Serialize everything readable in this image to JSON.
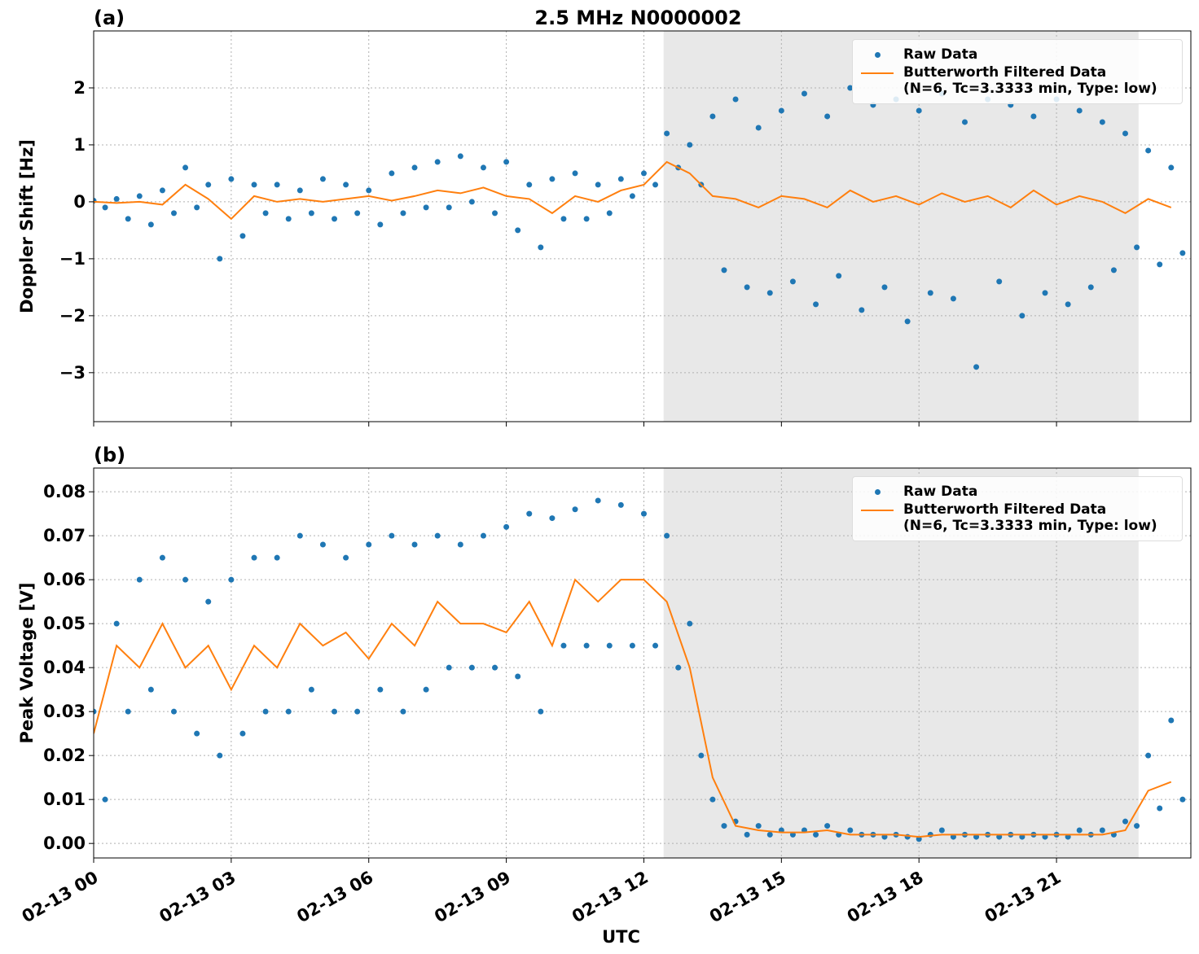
{
  "chart_data": [
    {
      "type": "line",
      "panel_label": "(a)",
      "title": "2.5 MHz N0000002",
      "ylabel": "Doppler Shift [Hz]",
      "xlim": [
        0,
        23.93
      ],
      "ylim": [
        -3.86,
        3.0
      ],
      "xticks": [
        0,
        3,
        6,
        9,
        12,
        15,
        18,
        21
      ],
      "yticks": [
        {
          "value": -3,
          "label": "−3"
        },
        {
          "value": -2,
          "label": "−2"
        },
        {
          "value": -1,
          "label": "−1"
        },
        0,
        1,
        2
      ],
      "grid": true,
      "legend": "upper right",
      "shaded_span": [
        12.43,
        22.79
      ],
      "shade_color": "#e8e8e8",
      "series": [
        {
          "name": "Raw Data",
          "kind": "scatter",
          "color": "#1f77b4",
          "x": [
            0,
            0.25,
            0.5,
            0.75,
            1,
            1.25,
            1.5,
            1.75,
            2,
            2.25,
            2.5,
            2.75,
            3,
            3.25,
            3.5,
            3.75,
            4,
            4.25,
            4.5,
            4.75,
            5,
            5.25,
            5.5,
            5.75,
            6,
            6.25,
            6.5,
            6.75,
            7,
            7.25,
            7.5,
            7.75,
            8,
            8.25,
            8.5,
            8.75,
            9,
            9.25,
            9.5,
            9.75,
            10,
            10.25,
            10.5,
            10.75,
            11,
            11.25,
            11.5,
            11.75,
            12,
            12.25,
            12.5,
            12.75,
            13,
            13.25,
            13.5,
            13.75,
            14,
            14.25,
            14.5,
            14.75,
            15,
            15.25,
            15.5,
            15.75,
            16,
            16.25,
            16.5,
            16.75,
            17,
            17.25,
            17.5,
            17.75,
            18,
            18.25,
            18.5,
            18.75,
            19,
            19.25,
            19.5,
            19.75,
            20,
            20.25,
            20.5,
            20.75,
            21,
            21.25,
            21.5,
            21.75,
            22,
            22.25,
            22.5,
            22.75,
            23,
            23.25,
            23.5,
            23.75
          ],
          "values": [
            0.02,
            -0.1,
            0.05,
            -0.3,
            0.1,
            -0.4,
            0.2,
            -0.2,
            0.6,
            -0.1,
            0.3,
            -1.0,
            0.4,
            -0.6,
            0.3,
            -0.2,
            0.3,
            -0.3,
            0.2,
            -0.2,
            0.4,
            -0.3,
            0.3,
            -0.2,
            0.2,
            -0.4,
            0.5,
            -0.2,
            0.6,
            -0.1,
            0.7,
            -0.1,
            0.8,
            0.0,
            0.6,
            -0.2,
            0.7,
            -0.5,
            0.3,
            -0.8,
            0.4,
            -0.3,
            0.5,
            -0.3,
            0.3,
            -0.2,
            0.4,
            0.1,
            0.5,
            0.3,
            1.2,
            0.6,
            1.0,
            0.3,
            1.5,
            -1.2,
            1.8,
            -1.5,
            1.3,
            -1.6,
            1.6,
            -1.4,
            1.9,
            -1.8,
            1.5,
            -1.3,
            2.0,
            -1.9,
            1.7,
            -1.5,
            1.8,
            -2.1,
            1.6,
            -1.6,
            1.9,
            -1.7,
            1.4,
            -2.9,
            1.8,
            -1.4,
            1.7,
            -2.0,
            1.5,
            -1.6,
            1.8,
            -1.8,
            1.6,
            -1.5,
            1.4,
            -1.2,
            1.2,
            -0.8,
            0.9,
            -1.1,
            0.6,
            -0.9
          ]
        },
        {
          "name": "Butterworth Filtered Data\n(N=6, Tc=3.3333 min, Type: low)",
          "kind": "line",
          "color": "#ff7f0e",
          "x": [
            0,
            0.5,
            1,
            1.5,
            2,
            2.5,
            3,
            3.5,
            4,
            4.5,
            5,
            5.5,
            6,
            6.5,
            7,
            7.5,
            8,
            8.5,
            9,
            9.5,
            10,
            10.5,
            11,
            11.5,
            12,
            12.5,
            13,
            13.5,
            14,
            14.5,
            15,
            15.5,
            16,
            16.5,
            17,
            17.5,
            18,
            18.5,
            19,
            19.5,
            20,
            20.5,
            21,
            21.5,
            22,
            22.5,
            23,
            23.5
          ],
          "values": [
            0,
            -0.02,
            0,
            -0.05,
            0.3,
            0.05,
            -0.3,
            0.1,
            0,
            0.05,
            0,
            0.05,
            0.1,
            0.02,
            0.1,
            0.2,
            0.15,
            0.25,
            0.1,
            0.05,
            -0.2,
            0.1,
            0,
            0.2,
            0.3,
            0.7,
            0.5,
            0.1,
            0.05,
            -0.1,
            0.1,
            0.05,
            -0.1,
            0.2,
            0,
            0.1,
            -0.05,
            0.15,
            0,
            0.1,
            -0.1,
            0.2,
            -0.05,
            0.1,
            0,
            -0.2,
            0.05,
            -0.1
          ]
        }
      ]
    },
    {
      "type": "line",
      "panel_label": "(b)",
      "ylabel": "Peak Voltage [V]",
      "xlabel": "UTC",
      "xlim": [
        0,
        23.93
      ],
      "ylim": [
        -0.0033,
        0.0854
      ],
      "xticks": [
        {
          "value": 0,
          "label": "02-13 00"
        },
        {
          "value": 3,
          "label": "02-13 03"
        },
        {
          "value": 6,
          "label": "02-13 06"
        },
        {
          "value": 9,
          "label": "02-13 09"
        },
        {
          "value": 12,
          "label": "02-13 12"
        },
        {
          "value": 15,
          "label": "02-13 15"
        },
        {
          "value": 18,
          "label": "02-13 18"
        },
        {
          "value": 21,
          "label": "02-13 21"
        }
      ],
      "yticks": [
        {
          "value": 0,
          "label": "0.00"
        },
        {
          "value": 0.01,
          "label": "0.01"
        },
        {
          "value": 0.02,
          "label": "0.02"
        },
        {
          "value": 0.03,
          "label": "0.03"
        },
        {
          "value": 0.04,
          "label": "0.04"
        },
        {
          "value": 0.05,
          "label": "0.05"
        },
        {
          "value": 0.06,
          "label": "0.06"
        },
        {
          "value": 0.07,
          "label": "0.07"
        },
        {
          "value": 0.08,
          "label": "0.08"
        }
      ],
      "grid": true,
      "legend": "upper right",
      "shaded_span": [
        12.43,
        22.79
      ],
      "shade_color": "#e8e8e8",
      "series": [
        {
          "name": "Raw Data",
          "kind": "scatter",
          "color": "#1f77b4",
          "x": [
            0,
            0.25,
            0.5,
            0.75,
            1,
            1.25,
            1.5,
            1.75,
            2,
            2.25,
            2.5,
            2.75,
            3,
            3.25,
            3.5,
            3.75,
            4,
            4.25,
            4.5,
            4.75,
            5,
            5.25,
            5.5,
            5.75,
            6,
            6.25,
            6.5,
            6.75,
            7,
            7.25,
            7.5,
            7.75,
            8,
            8.25,
            8.5,
            8.75,
            9,
            9.25,
            9.5,
            9.75,
            10,
            10.25,
            10.5,
            10.75,
            11,
            11.25,
            11.5,
            11.75,
            12,
            12.25,
            12.5,
            12.75,
            13,
            13.25,
            13.5,
            13.75,
            14,
            14.25,
            14.5,
            14.75,
            15,
            15.25,
            15.5,
            15.75,
            16,
            16.25,
            16.5,
            16.75,
            17,
            17.25,
            17.5,
            17.75,
            18,
            18.25,
            18.5,
            18.75,
            19,
            19.25,
            19.5,
            19.75,
            20,
            20.25,
            20.5,
            20.75,
            21,
            21.25,
            21.5,
            21.75,
            22,
            22.25,
            22.5,
            22.75,
            23,
            23.25,
            23.5,
            23.75
          ],
          "values": [
            0.03,
            0.01,
            0.05,
            0.03,
            0.06,
            0.035,
            0.065,
            0.03,
            0.06,
            0.025,
            0.055,
            0.02,
            0.06,
            0.025,
            0.065,
            0.03,
            0.065,
            0.03,
            0.07,
            0.035,
            0.068,
            0.03,
            0.065,
            0.03,
            0.068,
            0.035,
            0.07,
            0.03,
            0.068,
            0.035,
            0.07,
            0.04,
            0.068,
            0.04,
            0.07,
            0.04,
            0.072,
            0.038,
            0.075,
            0.03,
            0.074,
            0.045,
            0.076,
            0.045,
            0.078,
            0.045,
            0.077,
            0.045,
            0.075,
            0.045,
            0.07,
            0.04,
            0.05,
            0.02,
            0.01,
            0.004,
            0.005,
            0.002,
            0.004,
            0.002,
            0.003,
            0.002,
            0.003,
            0.002,
            0.004,
            0.002,
            0.003,
            0.002,
            0.002,
            0.0015,
            0.002,
            0.0015,
            0.001,
            0.002,
            0.003,
            0.0015,
            0.002,
            0.0015,
            0.002,
            0.0015,
            0.002,
            0.0015,
            0.002,
            0.0015,
            0.002,
            0.0015,
            0.003,
            0.002,
            0.003,
            0.002,
            0.005,
            0.004,
            0.02,
            0.008,
            0.028,
            0.01
          ]
        },
        {
          "name": "Butterworth Filtered Data\n(N=6, Tc=3.3333 min, Type: low)",
          "kind": "line",
          "color": "#ff7f0e",
          "x": [
            0,
            0.5,
            1,
            1.5,
            2,
            2.5,
            3,
            3.5,
            4,
            4.5,
            5,
            5.5,
            6,
            6.5,
            7,
            7.5,
            8,
            8.5,
            9,
            9.5,
            10,
            10.5,
            11,
            11.5,
            12,
            12.5,
            13,
            13.5,
            14,
            14.5,
            15,
            15.5,
            16,
            16.5,
            17,
            17.5,
            18,
            18.5,
            19,
            19.5,
            20,
            20.5,
            21,
            21.5,
            22,
            22.5,
            23,
            23.5
          ],
          "values": [
            0.025,
            0.045,
            0.04,
            0.05,
            0.04,
            0.045,
            0.035,
            0.045,
            0.04,
            0.05,
            0.045,
            0.048,
            0.042,
            0.05,
            0.045,
            0.055,
            0.05,
            0.05,
            0.048,
            0.055,
            0.045,
            0.06,
            0.055,
            0.06,
            0.06,
            0.055,
            0.04,
            0.015,
            0.004,
            0.003,
            0.0025,
            0.0025,
            0.003,
            0.002,
            0.002,
            0.002,
            0.0015,
            0.002,
            0.002,
            0.002,
            0.002,
            0.002,
            0.002,
            0.002,
            0.002,
            0.003,
            0.012,
            0.014
          ]
        }
      ]
    }
  ]
}
